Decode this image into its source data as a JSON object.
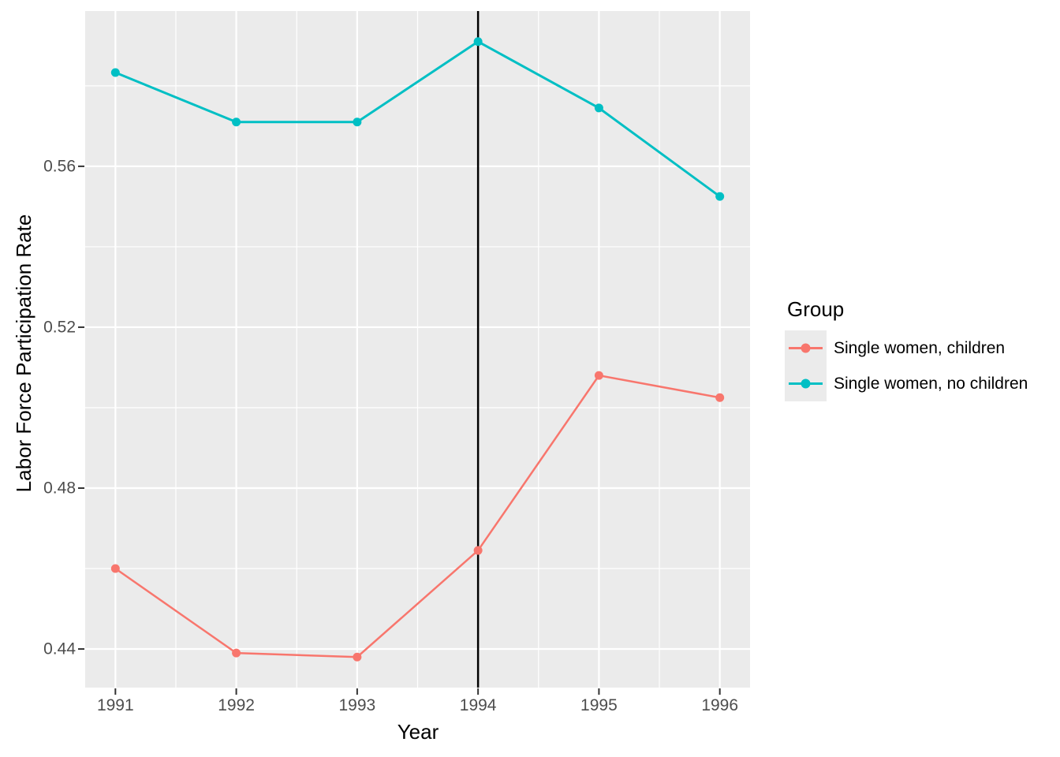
{
  "chart_data": {
    "type": "line",
    "title": "",
    "xlabel": "Year",
    "ylabel": "Labor Force Participation Rate",
    "x": [
      1991,
      1992,
      1993,
      1994,
      1995,
      1996
    ],
    "series": [
      {
        "name": "Single women, children",
        "color": "#F8766D",
        "values": [
          0.46,
          0.439,
          0.438,
          0.4645,
          0.508,
          0.5025
        ]
      },
      {
        "name": "Single women, no children",
        "color": "#00BFC4",
        "values": [
          0.5833,
          0.571,
          0.571,
          0.591,
          0.5745,
          0.5525
        ]
      }
    ],
    "vline_x": 1994,
    "vline_color": "#000000",
    "x_tick_labels": [
      "1991",
      "1992",
      "1993",
      "1994",
      "1995",
      "1996"
    ],
    "x_tick_values": [
      1991,
      1992,
      1993,
      1994,
      1995,
      1996
    ],
    "y_tick_labels": [
      "0.44",
      "0.48",
      "0.52",
      "0.56"
    ],
    "y_tick_values": [
      0.44,
      0.48,
      0.52,
      0.56
    ],
    "y_minor_values": [
      0.46,
      0.5,
      0.54,
      0.58
    ],
    "x_minor_values": [
      1991.5,
      1992.5,
      1993.5,
      1994.5,
      1995.5
    ],
    "xlim": [
      1990.75,
      1996.25
    ],
    "ylim": [
      0.4304,
      0.5986
    ],
    "grid": true,
    "panel_bg": "#EBEBEB",
    "grid_color": "#FFFFFF",
    "tick_mark_color": "#333333",
    "tick_text_color": "#4D4D4D",
    "legend_position": "right"
  },
  "axes": {
    "x_title": "Year",
    "y_title": "Labor Force Participation Rate"
  },
  "legend": {
    "title": "Group",
    "items": [
      {
        "label": "Single women, children",
        "color": "#F8766D"
      },
      {
        "label": "Single women, no children",
        "color": "#00BFC4"
      }
    ]
  }
}
